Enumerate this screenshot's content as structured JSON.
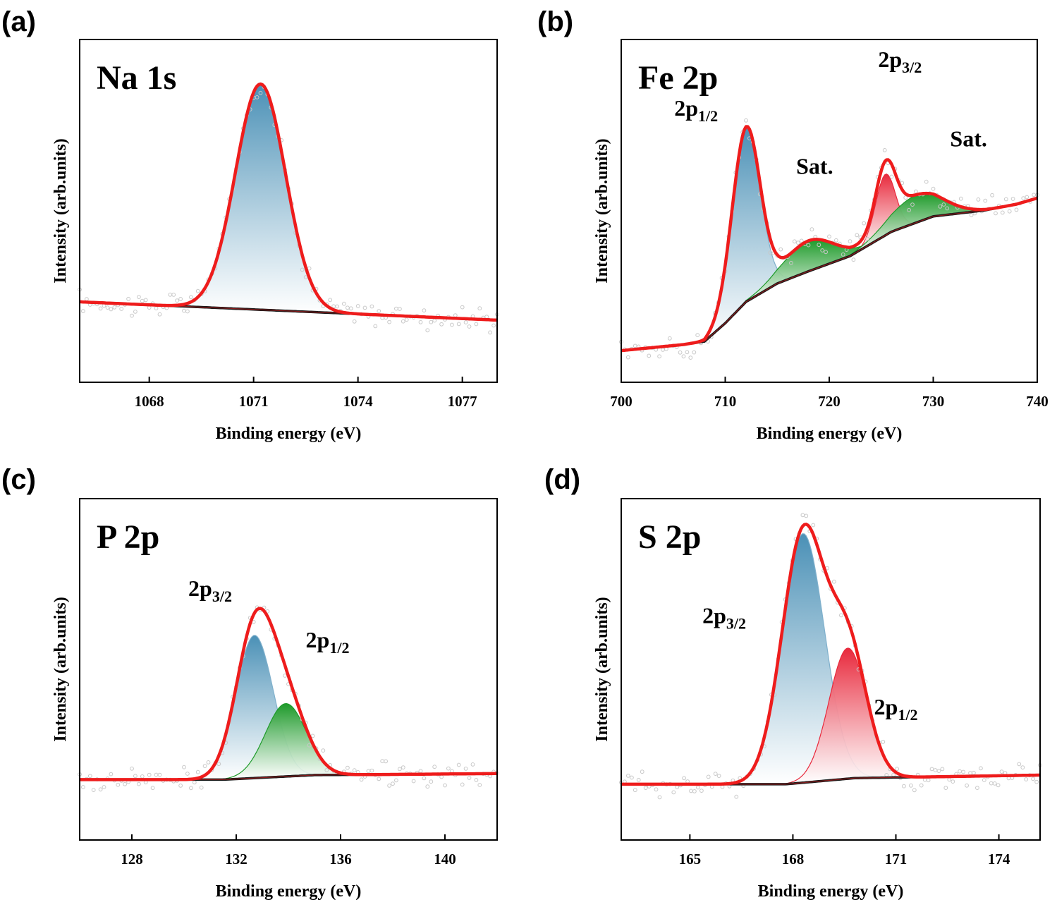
{
  "chart_data": [
    {
      "panel": "(a)",
      "type": "line",
      "title": "Na 1s",
      "xlabel": "Binding energy (eV)",
      "ylabel": "Intensity (arb.units)",
      "xlim": [
        1066,
        1078
      ],
      "xticks": [
        1068,
        1071,
        1074,
        1077
      ],
      "ylim": [
        0,
        1.0
      ],
      "baseline": [
        [
          1066,
          0.23
        ],
        [
          1078,
          0.17
        ]
      ],
      "components": [
        {
          "center": 1071.2,
          "amplitude": 0.74,
          "sigma": 0.72,
          "fill": "blue"
        }
      ],
      "envelope_color": "#ee1c1c",
      "annotations": []
    },
    {
      "panel": "(b)",
      "type": "line",
      "title": "Fe 2p",
      "xlabel": "Binding energy (eV)",
      "ylabel": "Intensity (arb.units)",
      "xlim": [
        700,
        740
      ],
      "xticks": [
        700,
        710,
        720,
        730,
        740
      ],
      "ylim": [
        0,
        1.0
      ],
      "baseline": [
        [
          700,
          0.07
        ],
        [
          703,
          0.08
        ],
        [
          706,
          0.09
        ],
        [
          708,
          0.1
        ],
        [
          710,
          0.16
        ],
        [
          712,
          0.23
        ],
        [
          715,
          0.29
        ],
        [
          718,
          0.33
        ],
        [
          722,
          0.38
        ],
        [
          726,
          0.46
        ],
        [
          730,
          0.51
        ],
        [
          735,
          0.53
        ],
        [
          738,
          0.55
        ],
        [
          740,
          0.57
        ]
      ],
      "components": [
        {
          "center": 712.0,
          "amplitude": 0.57,
          "sigma": 1.35,
          "fill": "blue"
        },
        {
          "center": 718.0,
          "amplitude": 0.1,
          "sigma": 2.4,
          "fill": "green"
        },
        {
          "center": 725.4,
          "amplitude": 0.2,
          "sigma": 0.95,
          "fill": "red"
        },
        {
          "center": 728.4,
          "amplitude": 0.09,
          "sigma": 2.5,
          "fill": "green"
        }
      ],
      "envelope_color": "#ee1c1c",
      "annotations": [
        {
          "main": "2p",
          "sub": "1/2",
          "x": 707.2,
          "y": 0.84
        },
        {
          "main": "Sat.",
          "x": 718.6,
          "y": 0.65
        },
        {
          "main": "2p",
          "sub": "3/2",
          "x": 726.8,
          "y": 1.0
        },
        {
          "main": "Sat.",
          "x": 733.4,
          "y": 0.74
        }
      ]
    },
    {
      "panel": "(c)",
      "type": "line",
      "title": "P 2p",
      "xlabel": "Binding energy (eV)",
      "ylabel": "Intensity (arb.units)",
      "xlim": [
        126,
        142
      ],
      "xticks": [
        128,
        132,
        136,
        140
      ],
      "ylim": [
        0,
        1.0
      ],
      "baseline": [
        [
          126,
          0.165
        ],
        [
          131.5,
          0.165
        ],
        [
          135,
          0.18
        ],
        [
          142,
          0.185
        ]
      ],
      "components": [
        {
          "center": 132.7,
          "amplitude": 0.47,
          "sigma": 0.72,
          "fill": "blue"
        },
        {
          "center": 133.9,
          "amplitude": 0.24,
          "sigma": 0.78,
          "fill": "green"
        }
      ],
      "envelope_color": "#ee1c1c",
      "annotations": [
        {
          "main": "2p",
          "sub": "3/2",
          "x": 131.0,
          "y": 0.77
        },
        {
          "main": "2p",
          "sub": "1/2",
          "x": 135.5,
          "y": 0.6
        }
      ]
    },
    {
      "panel": "(d)",
      "type": "line",
      "title": "S 2p",
      "xlabel": "Binding energy (eV)",
      "ylabel": "Intensity (arb.units)",
      "xlim": [
        163,
        175.2
      ],
      "xticks": [
        165,
        168,
        171,
        174
      ],
      "ylim": [
        0,
        1.0
      ],
      "baseline": [
        [
          163,
          0.15
        ],
        [
          167.8,
          0.15
        ],
        [
          169.8,
          0.17
        ],
        [
          175.2,
          0.18
        ]
      ],
      "components": [
        {
          "center": 168.3,
          "amplitude": 0.82,
          "sigma": 0.62,
          "fill": "blue"
        },
        {
          "center": 169.6,
          "amplitude": 0.43,
          "sigma": 0.55,
          "fill": "red"
        }
      ],
      "envelope_color": "#ee1c1c",
      "annotations": [
        {
          "main": "2p",
          "sub": "3/2",
          "x": 166.0,
          "y": 0.68
        },
        {
          "main": "2p",
          "sub": "1/2",
          "x": 171.0,
          "y": 0.38
        }
      ]
    }
  ]
}
